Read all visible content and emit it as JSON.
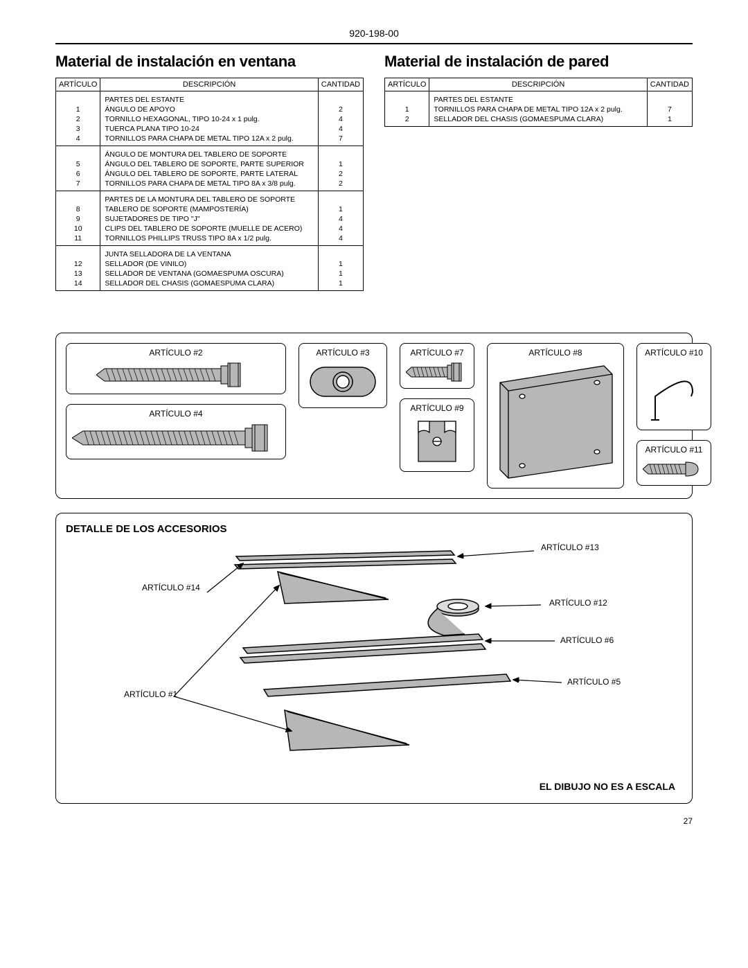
{
  "doc_number": "920-198-00",
  "page_number": "27",
  "section_window_title": "Material de instalación en ventana",
  "section_wall_title": "Material de instalación de pared",
  "headers": {
    "item": "ARTÍCULO",
    "desc": "DESCRIPCIÓN",
    "qty": "CANTIDAD"
  },
  "window_groups": [
    {
      "heading": "PARTES DEL ESTANTE",
      "rows": [
        {
          "n": "1",
          "d": "ÁNGULO DE APOYO",
          "q": "2"
        },
        {
          "n": "2",
          "d": "TORNILLO HEXAGONAL, TIPO 10-24 x 1 pulg.",
          "q": "4"
        },
        {
          "n": "3",
          "d": "TUERCA PLANA TIPO 10-24",
          "q": "4"
        },
        {
          "n": "4",
          "d": "TORNILLOS PARA CHAPA DE METAL TIPO 12A x 2 pulg.",
          "q": "7"
        }
      ]
    },
    {
      "heading": "ÁNGULO DE MONTURA DEL TABLERO DE SOPORTE",
      "rows": [
        {
          "n": "5",
          "d": "ÁNGULO DEL TABLERO DE SOPORTE, PARTE SUPERIOR",
          "q": "1"
        },
        {
          "n": "6",
          "d": "ÁNGULO DEL TABLERO DE SOPORTE, PARTE LATERAL",
          "q": "2"
        },
        {
          "n": "7",
          "d": "TORNILLOS PARA CHAPA DE METAL TIPO 8A x 3/8 pulg.",
          "q": "2"
        }
      ]
    },
    {
      "heading": "PARTES DE LA MONTURA DEL TABLERO DE SOPORTE",
      "rows": [
        {
          "n": "8",
          "d": "TABLERO DE SOPORTE (MAMPOSTERÍA)",
          "q": "1"
        },
        {
          "n": "9",
          "d": "SUJETADORES DE TIPO \"J\"",
          "q": "4"
        },
        {
          "n": "10",
          "d": "CLIPS DEL TABLERO DE SOPORTE (MUELLE DE ACERO)",
          "q": "4"
        },
        {
          "n": "11",
          "d": "TORNILLOS PHILLIPS TRUSS TIPO 8A x 1/2 pulg.",
          "q": "4"
        }
      ]
    },
    {
      "heading": "JUNTA SELLADORA DE LA VENTANA",
      "rows": [
        {
          "n": "12",
          "d": "SELLADOR (DE VINILO)",
          "q": "1"
        },
        {
          "n": "13",
          "d": "SELLADOR DE VENTANA (GOMAESPUMA OSCURA)",
          "q": "1"
        },
        {
          "n": "14",
          "d": "SELLADOR DEL CHASIS (GOMAESPUMA CLARA)",
          "q": "1"
        }
      ]
    }
  ],
  "wall_groups": [
    {
      "heading": "PARTES DEL ESTANTE",
      "rows": [
        {
          "n": "1",
          "d": "TORNILLOS PARA CHAPA DE METAL TIPO 12A x 2 pulg.",
          "q": "7"
        },
        {
          "n": "2",
          "d": "SELLADOR DEL CHASIS (GOMAESPUMA CLARA)",
          "q": "1"
        }
      ]
    }
  ],
  "cards": {
    "a2": "ARTÍCULO #2",
    "a3": "ARTÍCULO #3",
    "a4": "ARTÍCULO #4",
    "a7": "ARTÍCULO #7",
    "a8": "ARTÍCULO #8",
    "a9": "ARTÍCULO #9",
    "a10": "ARTÍCULO #10",
    "a11": "ARTÍCULO #11"
  },
  "detail": {
    "title": "DETALLE DE LOS ACCESORIOS",
    "note": "EL DIBUJO NO ES A ESCALA",
    "callouts": {
      "a1": "ARTÍCULO #1",
      "a5": "ARTÍCULO #5",
      "a6": "ARTÍCULO #6",
      "a12": "ARTÍCULO #12",
      "a13": "ARTÍCULO #13",
      "a14": "ARTÍCULO #14"
    }
  },
  "colors": {
    "part_fill": "#b7b7b7",
    "stroke": "#000000"
  }
}
